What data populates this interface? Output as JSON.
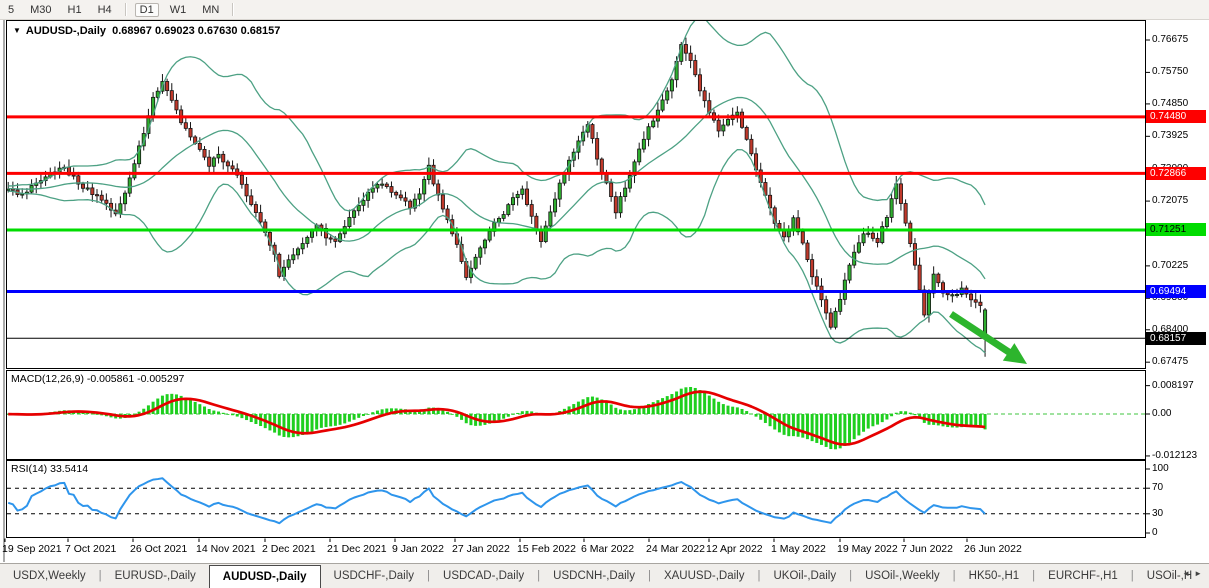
{
  "toolbar": {
    "timeframe_groups": [
      [
        "5",
        "M30",
        "H1",
        "H4"
      ],
      [
        "D1",
        "W1",
        "MN"
      ]
    ],
    "active_timeframe": "D1"
  },
  "chart_header": {
    "dropdown_icon": "▼",
    "symbol": "AUDUSD-,Daily",
    "ohlc_text": "0.68967 0.69023 0.67630 0.68157"
  },
  "price_axis": {
    "ticks": [
      "0.76675",
      "0.75750",
      "0.74850",
      "0.73925",
      "0.73000",
      "0.72075",
      "0.71150",
      "0.70225",
      "0.69300",
      "0.68400",
      "0.67475"
    ]
  },
  "hlines": [
    {
      "value": 0.7448,
      "label": "0.74480",
      "color": "#fe0000",
      "text_color": "#ffffff",
      "width": 3
    },
    {
      "value": 0.72866,
      "label": "0.72866",
      "color": "#fe0000",
      "text_color": "#ffffff",
      "width": 3
    },
    {
      "value": 0.71251,
      "label": "0.71251",
      "color": "#00dc00",
      "text_color": "#000000",
      "width": 3
    },
    {
      "value": 0.69494,
      "label": "0.69494",
      "color": "#0000ff",
      "text_color": "#ffffff",
      "width": 3
    }
  ],
  "current_price": {
    "value": 0.68157,
    "label": "0.68157",
    "line_color": "#000000",
    "label_bg": "#000000",
    "text_color": "#ffffff"
  },
  "macd_panel": {
    "name": "MACD(12,26,9)",
    "values_text": "-0.005861 -0.005297",
    "axis": [
      "0.008197",
      "0.00",
      "-0.012123"
    ],
    "histogram_color": "#1ecf1e",
    "signal_color": "#e60000"
  },
  "rsi_panel": {
    "name": "RSI(14)",
    "value_text": "33.5414",
    "axis": [
      "100",
      "70",
      "30",
      "0"
    ],
    "levels": [
      70,
      30
    ],
    "line_color": "#2e95ec"
  },
  "time_axis": {
    "labels": [
      "19 Sep 2021",
      "7 Oct 2021",
      "26 Oct 2021",
      "14 Nov 2021",
      "2 Dec 2021",
      "21 Dec 2021",
      "9 Jan 2022",
      "27 Jan 2022",
      "15 Feb 2022",
      "6 Mar 2022",
      "24 Mar 2022",
      "12 Apr 2022",
      "1 May 2022",
      "19 May 2022",
      "7 Jun 2022",
      "26 Jun 2022"
    ]
  },
  "tabs": {
    "items": [
      {
        "label": "USDX,Weekly",
        "active": false
      },
      {
        "label": "EURUSD-,Daily",
        "active": false
      },
      {
        "label": "AUDUSD-,Daily",
        "active": true
      },
      {
        "label": "USDCHF-,Daily",
        "active": false
      },
      {
        "label": "USDCAD-,Daily",
        "active": false
      },
      {
        "label": "USDCNH-,Daily",
        "active": false
      },
      {
        "label": "XAUUSD-,Daily",
        "active": false
      },
      {
        "label": "UKOil-,Daily",
        "active": false
      },
      {
        "label": "USOil-,Weekly",
        "active": false
      },
      {
        "label": "HK50-,H1",
        "active": false
      },
      {
        "label": "EURCHF-,H1",
        "active": false
      },
      {
        "label": "USOil-,H",
        "active": false
      }
    ],
    "scroll_left_icon": "◄",
    "scroll_right_icon": "►"
  },
  "colors": {
    "bull": "#2fae2f",
    "bear": "#c0392b",
    "candle_border": "#141414",
    "bollinger": "#4da184",
    "panel_border": "#000000",
    "arrow": "#2db52d"
  },
  "chart_data": {
    "type": "candlestick",
    "symbol": "AUDUSD-",
    "timeframe": "Daily",
    "current_bar": {
      "open": 0.68967,
      "high": 0.69023,
      "low": 0.6763,
      "close": 0.68157
    },
    "bar_count": 210,
    "visible_price_range": [
      0.6763,
      0.7675
    ],
    "hline_levels": [
      0.7448,
      0.72866,
      0.71251,
      0.69494
    ],
    "indicators": {
      "bollinger": {
        "period": 20,
        "deviation": 2
      },
      "macd": {
        "fast": 12,
        "slow": 26,
        "signal": 9,
        "last_main": -0.005861,
        "last_signal": -0.005297,
        "axis_max": 0.008197,
        "axis_min": -0.012123
      },
      "rsi": {
        "period": 14,
        "last": 33.5414,
        "levels": [
          70,
          30
        ]
      }
    },
    "price_path_anchors": [
      [
        0,
        0.7245
      ],
      [
        3,
        0.7225
      ],
      [
        6,
        0.7258
      ],
      [
        9,
        0.7292
      ],
      [
        12,
        0.73
      ],
      [
        15,
        0.7262
      ],
      [
        18,
        0.7232
      ],
      [
        21,
        0.72
      ],
      [
        23,
        0.7172
      ],
      [
        25,
        0.723
      ],
      [
        27,
        0.731
      ],
      [
        29,
        0.7405
      ],
      [
        31,
        0.75
      ],
      [
        33,
        0.7545
      ],
      [
        35,
        0.7498
      ],
      [
        37,
        0.7432
      ],
      [
        39,
        0.739
      ],
      [
        41,
        0.7352
      ],
      [
        43,
        0.731
      ],
      [
        45,
        0.734
      ],
      [
        47,
        0.7305
      ],
      [
        49,
        0.728
      ],
      [
        51,
        0.723
      ],
      [
        53,
        0.717
      ],
      [
        55,
        0.711
      ],
      [
        57,
        0.705
      ],
      [
        58,
        0.6998
      ],
      [
        60,
        0.7035
      ],
      [
        62,
        0.7075
      ],
      [
        64,
        0.7105
      ],
      [
        66,
        0.7135
      ],
      [
        68,
        0.711
      ],
      [
        70,
        0.7098
      ],
      [
        72,
        0.7135
      ],
      [
        74,
        0.7175
      ],
      [
        76,
        0.7215
      ],
      [
        78,
        0.7248
      ],
      [
        80,
        0.7258
      ],
      [
        82,
        0.724
      ],
      [
        84,
        0.7212
      ],
      [
        86,
        0.7188
      ],
      [
        88,
        0.7235
      ],
      [
        90,
        0.7302
      ],
      [
        92,
        0.7222
      ],
      [
        94,
        0.7152
      ],
      [
        96,
        0.7078
      ],
      [
        98,
        0.6988
      ],
      [
        100,
        0.7042
      ],
      [
        102,
        0.7092
      ],
      [
        104,
        0.7142
      ],
      [
        106,
        0.7172
      ],
      [
        108,
        0.7212
      ],
      [
        110,
        0.7242
      ],
      [
        112,
        0.7162
      ],
      [
        114,
        0.7098
      ],
      [
        116,
        0.7182
      ],
      [
        118,
        0.7255
      ],
      [
        120,
        0.7325
      ],
      [
        122,
        0.7372
      ],
      [
        124,
        0.7432
      ],
      [
        126,
        0.733
      ],
      [
        128,
        0.7252
      ],
      [
        130,
        0.7182
      ],
      [
        132,
        0.7252
      ],
      [
        134,
        0.7322
      ],
      [
        136,
        0.7385
      ],
      [
        138,
        0.7442
      ],
      [
        140,
        0.7492
      ],
      [
        142,
        0.7562
      ],
      [
        144,
        0.7655
      ],
      [
        146,
        0.7602
      ],
      [
        148,
        0.7522
      ],
      [
        150,
        0.7455
      ],
      [
        152,
        0.7412
      ],
      [
        154,
        0.7448
      ],
      [
        156,
        0.7458
      ],
      [
        158,
        0.7382
      ],
      [
        160,
        0.7302
      ],
      [
        162,
        0.7222
      ],
      [
        164,
        0.7142
      ],
      [
        166,
        0.7102
      ],
      [
        168,
        0.7152
      ],
      [
        170,
        0.7082
      ],
      [
        172,
        0.6992
      ],
      [
        174,
        0.6922
      ],
      [
        176,
        0.6852
      ],
      [
        178,
        0.6922
      ],
      [
        180,
        0.7032
      ],
      [
        182,
        0.7092
      ],
      [
        184,
        0.7122
      ],
      [
        186,
        0.7092
      ],
      [
        188,
        0.7162
      ],
      [
        190,
        0.7262
      ],
      [
        192,
        0.7152
      ],
      [
        194,
        0.7032
      ],
      [
        196,
        0.6882
      ],
      [
        197,
        0.6942
      ],
      [
        198,
        0.7005
      ],
      [
        200,
        0.6952
      ],
      [
        202,
        0.6938
      ],
      [
        204,
        0.6952
      ],
      [
        206,
        0.6925
      ],
      [
        208,
        0.6902
      ],
      [
        209,
        0.688
      ]
    ],
    "time_label_x": [
      2,
      65,
      130,
      196,
      262,
      327,
      392,
      452,
      517,
      581,
      646,
      706,
      771,
      837,
      901,
      964
    ],
    "arrow_annotation": {
      "tail": [
        951,
        314
      ],
      "tip": [
        1027,
        364
      ],
      "color": "#2db52d"
    }
  }
}
